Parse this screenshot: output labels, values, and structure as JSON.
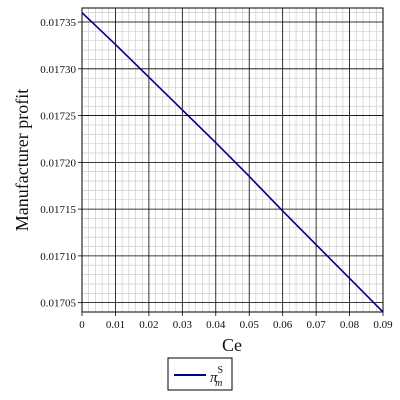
{
  "chart_data": {
    "type": "line",
    "title": "",
    "xlabel": "Ce",
    "ylabel": "Manufacturer profit",
    "xlim": [
      0,
      0.09
    ],
    "ylim": [
      0.01704,
      0.017365
    ],
    "x_ticks": [
      0,
      0.01,
      0.02,
      0.03,
      0.04,
      0.05,
      0.06,
      0.07,
      0.08,
      0.09
    ],
    "x_tick_labels": [
      "0",
      "0.01",
      "0.02",
      "0.03",
      "0.04",
      "0.05",
      "0.06",
      "0.07",
      "0.08",
      "0.09"
    ],
    "y_ticks": [
      0.01705,
      0.0171,
      0.01715,
      0.0172,
      0.01725,
      0.0173,
      0.01735
    ],
    "y_tick_labels": [
      "0.01705",
      "0.01710",
      "0.01715",
      "0.01720",
      "0.01725",
      "0.01730",
      "0.01735"
    ],
    "grid": "major and minor",
    "legend_position": "bottom-center",
    "series": [
      {
        "name": "π_m^S",
        "legend_symbol": "π",
        "legend_superscript": "S",
        "legend_subscript": "m",
        "color": "#00008B",
        "x": [
          0,
          0.01,
          0.02,
          0.03,
          0.04,
          0.05,
          0.06,
          0.07,
          0.08,
          0.09
        ],
        "y": [
          0.01736,
          0.017326,
          0.017291,
          0.017256,
          0.017221,
          0.017185,
          0.017148,
          0.017112,
          0.017076,
          0.01704
        ]
      }
    ]
  }
}
